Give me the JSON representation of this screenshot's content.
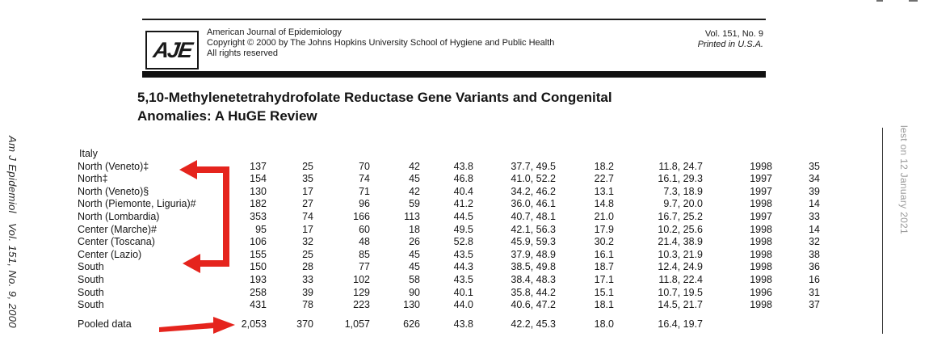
{
  "page": {
    "header": {
      "logo_text": "AJE",
      "journal_name": "American Journal of Epidemiology",
      "copyright_line": "Copyright © 2000 by The Johns Hopkins University School of Hygiene and Public Health",
      "rights_line": "All rights reserved",
      "volume_line": "Vol. 151, No. 9",
      "printed_line": "Printed in U.S.A."
    },
    "title": {
      "line1": "5,10-Methylenetetrahydrofolate Reductase Gene Variants and Congenital",
      "line2": "Anomalies: A HuGE Review"
    },
    "margins": {
      "left_vertical_text": "Am J Epidemiol   Vol. 151, No. 9, 2000",
      "right_vertical_text": "lest on 12 January 2021"
    }
  },
  "table": {
    "group_label": "Italy",
    "rows": [
      {
        "label": "North (Veneto)‡",
        "values": [
          "137",
          "25",
          "70",
          "42",
          "43.8",
          "37.7, 49.5",
          "18.2",
          "11.8, 24.7",
          "1998",
          "35"
        ]
      },
      {
        "label": "North‡",
        "values": [
          "154",
          "35",
          "74",
          "45",
          "46.8",
          "41.0, 52.2",
          "22.7",
          "16.1, 29.3",
          "1997",
          "34"
        ]
      },
      {
        "label": "North (Veneto)§",
        "values": [
          "130",
          "17",
          "71",
          "42",
          "40.4",
          "34.2, 46.2",
          "13.1",
          "7.3, 18.9",
          "1997",
          "39"
        ]
      },
      {
        "label": "North (Piemonte, Liguria)#",
        "values": [
          "182",
          "27",
          "96",
          "59",
          "41.2",
          "36.0, 46.1",
          "14.8",
          "9.7, 20.0",
          "1998",
          "14"
        ]
      },
      {
        "label": "North (Lombardia)",
        "values": [
          "353",
          "74",
          "166",
          "113",
          "44.5",
          "40.7, 48.1",
          "21.0",
          "16.7, 25.2",
          "1997",
          "33"
        ]
      },
      {
        "label": "Center (Marche)#",
        "values": [
          "95",
          "17",
          "60",
          "18",
          "49.5",
          "42.1, 56.3",
          "17.9",
          "10.2, 25.6",
          "1998",
          "14"
        ]
      },
      {
        "label": "Center (Toscana)",
        "values": [
          "106",
          "32",
          "48",
          "26",
          "52.8",
          "45.9, 59.3",
          "30.2",
          "21.4, 38.9",
          "1998",
          "32"
        ]
      },
      {
        "label": "Center (Lazio)",
        "values": [
          "155",
          "25",
          "85",
          "45",
          "43.5",
          "37.9, 48.9",
          "16.1",
          "10.3, 21.9",
          "1998",
          "38"
        ]
      },
      {
        "label": "South",
        "values": [
          "150",
          "28",
          "77",
          "45",
          "44.3",
          "38.5, 49.8",
          "18.7",
          "12.4, 24.9",
          "1998",
          "36"
        ]
      },
      {
        "label": "South",
        "values": [
          "193",
          "33",
          "102",
          "58",
          "43.5",
          "38.4, 48.3",
          "17.1",
          "11.8, 22.4",
          "1998",
          "16"
        ]
      },
      {
        "label": "South",
        "values": [
          "258",
          "39",
          "129",
          "90",
          "40.1",
          "35.8, 44.2",
          "15.1",
          "10.7, 19.5",
          "1996",
          "31"
        ]
      },
      {
        "label": "South",
        "values": [
          "431",
          "78",
          "223",
          "130",
          "44.0",
          "40.6, 47.2",
          "18.1",
          "14.5, 21.7",
          "1998",
          "37"
        ]
      },
      {
        "label": "Pooled data",
        "gap_before": true,
        "values": [
          "2,053",
          "370",
          "1,057",
          "626",
          "43.8",
          "42.2, 45.3",
          "18.0",
          "16.4, 19.7",
          "",
          ""
        ]
      }
    ]
  },
  "annotations": {
    "color": "#e5241d",
    "bracket_arrow_target_top": "North (Veneto)‡",
    "bracket_arrow_target_bottom": "Center (Lazio)",
    "pooled_arrow_target": "Pooled data"
  }
}
